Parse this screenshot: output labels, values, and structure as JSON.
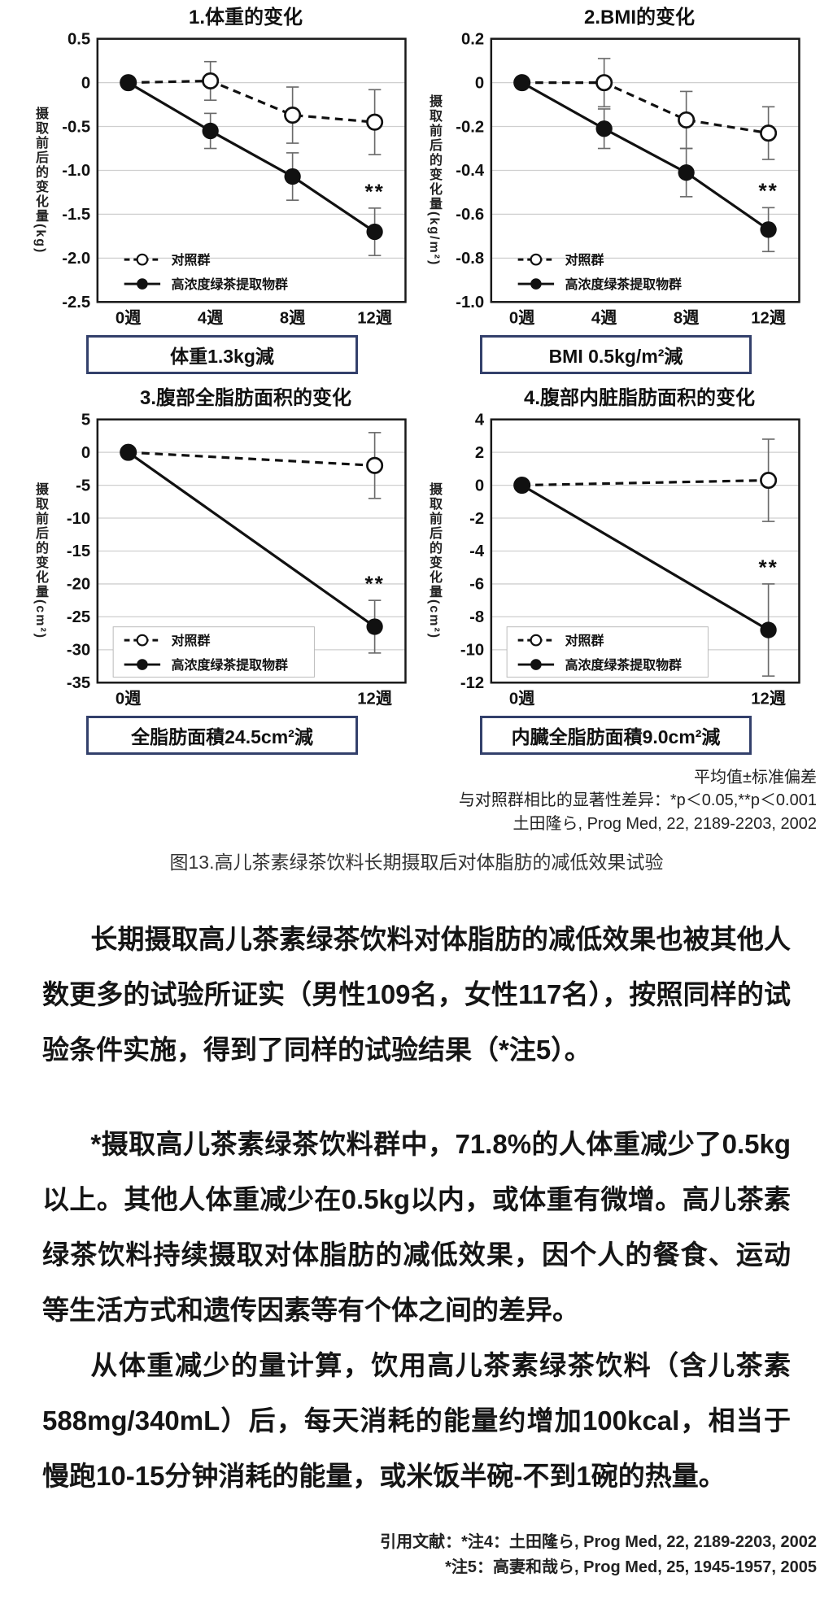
{
  "figure": {
    "notes": [
      "平均值±标准偏差",
      "与对照群相比的显著性差异：*p＜0.05,**p＜0.001",
      "土田隆ら, Prog Med, 22, 2189-2203, 2002"
    ],
    "caption": "图13.高儿茶素绿茶饮料长期摄取后对体脂肪的减低效果试验"
  },
  "chart_data": [
    {
      "type": "line",
      "title": "1.体重的变化",
      "ylabel": "摄取前后的变化量(kg)",
      "ylim": [
        -2.5,
        0.5
      ],
      "yticks": [
        {
          "v": 0.5,
          "label": "0.5"
        },
        {
          "v": 0,
          "label": "0"
        },
        {
          "v": -0.5,
          "label": "-0.5"
        },
        {
          "v": -1.0,
          "label": "-1.0"
        },
        {
          "v": -1.5,
          "label": "-1.5"
        },
        {
          "v": -2.0,
          "label": "-2.0"
        },
        {
          "v": -2.5,
          "label": "-2.5"
        }
      ],
      "categories": [
        "0週",
        "4週",
        "8週",
        "12週"
      ],
      "series": [
        {
          "name": "对照群",
          "marker": "open",
          "line": "dashed",
          "values": [
            0,
            0.02,
            -0.37,
            -0.45
          ],
          "errors": [
            0,
            0.22,
            0.32,
            0.37
          ]
        },
        {
          "name": "高浓度绿茶提取物群",
          "marker": "filled",
          "line": "solid",
          "values": [
            0,
            -0.55,
            -1.07,
            -1.7
          ],
          "errors": [
            0,
            0.2,
            0.27,
            0.27
          ]
        }
      ],
      "legend_box": false,
      "significance": {
        "label": "**",
        "series": 1,
        "index": 3
      },
      "result_box": "体重1.3kg減"
    },
    {
      "type": "line",
      "title": "2.BMI的变化",
      "ylabel": "摄取前后的变化量(kg/m²)",
      "ylim": [
        -1.0,
        0.2
      ],
      "yticks": [
        {
          "v": 0.2,
          "label": "0.2"
        },
        {
          "v": 0,
          "label": "0"
        },
        {
          "v": -0.2,
          "label": "-0.2"
        },
        {
          "v": -0.4,
          "label": "-0.4"
        },
        {
          "v": -0.6,
          "label": "-0.6"
        },
        {
          "v": -0.8,
          "label": "-0.8"
        },
        {
          "v": -1.0,
          "label": "-1.0"
        }
      ],
      "categories": [
        "0週",
        "4週",
        "8週",
        "12週"
      ],
      "series": [
        {
          "name": "对照群",
          "marker": "open",
          "line": "dashed",
          "values": [
            0,
            0.0,
            -0.17,
            -0.23
          ],
          "errors": [
            0,
            0.11,
            0.13,
            0.12
          ]
        },
        {
          "name": "高浓度绿茶提取物群",
          "marker": "filled",
          "line": "solid",
          "values": [
            0,
            -0.21,
            -0.41,
            -0.67
          ],
          "errors": [
            0,
            0.09,
            0.11,
            0.1
          ]
        }
      ],
      "legend_box": false,
      "significance": {
        "label": "**",
        "series": 1,
        "index": 3
      },
      "result_box": "BMI 0.5kg/m²減"
    },
    {
      "type": "line",
      "title": "3.腹部全脂肪面积的变化",
      "ylabel": "摄取前后的变化量(cm²)",
      "ylim": [
        -35,
        5
      ],
      "yticks": [
        {
          "v": 5,
          "label": "5"
        },
        {
          "v": 0,
          "label": "0"
        },
        {
          "v": -5,
          "label": "-5"
        },
        {
          "v": -10,
          "label": "-10"
        },
        {
          "v": -15,
          "label": "-15"
        },
        {
          "v": -20,
          "label": "-20"
        },
        {
          "v": -25,
          "label": "-25"
        },
        {
          "v": -30,
          "label": "-30"
        },
        {
          "v": -35,
          "label": "-35"
        }
      ],
      "categories": [
        "0週",
        "12週"
      ],
      "series": [
        {
          "name": "对照群",
          "marker": "open",
          "line": "dashed",
          "values": [
            0,
            -2
          ],
          "errors": [
            0,
            5
          ]
        },
        {
          "name": "高浓度绿茶提取物群",
          "marker": "filled",
          "line": "solid",
          "values": [
            0,
            -26.5
          ],
          "errors": [
            0,
            4
          ]
        }
      ],
      "legend_box": true,
      "significance": {
        "label": "**",
        "series": 1,
        "index": 1
      },
      "result_box": "全脂肪面積24.5cm²減"
    },
    {
      "type": "line",
      "title": "4.腹部内脏脂肪面积的变化",
      "ylabel": "摄取前后的变化量(cm²)",
      "ylim": [
        -12,
        4
      ],
      "yticks": [
        {
          "v": 4,
          "label": "4"
        },
        {
          "v": 2,
          "label": "2"
        },
        {
          "v": 0,
          "label": "0"
        },
        {
          "v": -2,
          "label": "-2"
        },
        {
          "v": -4,
          "label": "-4"
        },
        {
          "v": -6,
          "label": "-6"
        },
        {
          "v": -8,
          "label": "-8"
        },
        {
          "v": -10,
          "label": "-10"
        },
        {
          "v": -12,
          "label": "-12"
        }
      ],
      "categories": [
        "0週",
        "12週"
      ],
      "series": [
        {
          "name": "对照群",
          "marker": "open",
          "line": "dashed",
          "values": [
            0,
            0.3
          ],
          "errors": [
            0,
            2.5
          ]
        },
        {
          "name": "高浓度绿茶提取物群",
          "marker": "filled",
          "line": "solid",
          "values": [
            0,
            -8.8
          ],
          "errors": [
            0,
            2.8
          ]
        }
      ],
      "legend_box": true,
      "significance": {
        "label": "**",
        "series": 1,
        "index": 1
      },
      "result_box": "内臓全脂肪面積9.0cm²減"
    }
  ],
  "body": {
    "paragraphs": [
      "长期摄取高儿茶素绿茶饮料对体脂肪的减低效果也被其他人数更多的试验所证实（男性109名，女性117名），按照同样的试验条件实施，得到了同样的试验结果（*注5）。",
      "*摄取高儿茶素绿茶饮料群中，71.8%的人体重减少了0.5kg以上。其他人体重减少在0.5kg以内，或体重有微增。高儿茶素绿茶饮料持续摄取对体脂肪的减低效果，因个人的餐食、运动等生活方式和遗传因素等有个体之间的差异。",
      "从体重减少的量计算，饮用高儿茶素绿茶饮料（含儿茶素588mg/340mL）后，每天消耗的能量约增加100kcal，相当于慢跑10-15分钟消耗的能量，或米饭半碗-不到1碗的热量。"
    ]
  },
  "references": {
    "lines": [
      "引用文献：*注4：土田隆ら, Prog Med, 22, 2189-2203, 2002",
      "*注5：高妻和哉ら, Prog Med, 25, 1945-1957, 2005"
    ]
  },
  "colors": {
    "series_line": "#111111",
    "error_bar": "#6a6a6a",
    "gridline": "#cfcfcf",
    "result_box_border": "#33406b"
  }
}
